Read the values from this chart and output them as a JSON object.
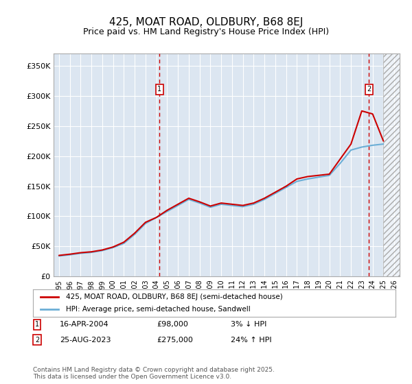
{
  "title_line1": "425, MOAT ROAD, OLDBURY, B68 8EJ",
  "title_line2": "Price paid vs. HM Land Registry's House Price Index (HPI)",
  "ylabel_ticks": [
    "£0",
    "£50K",
    "£100K",
    "£150K",
    "£200K",
    "£250K",
    "£300K",
    "£350K"
  ],
  "ytick_vals": [
    0,
    50000,
    100000,
    150000,
    200000,
    250000,
    300000,
    350000
  ],
  "ylim": [
    0,
    370000
  ],
  "xlim_start": 1994.5,
  "xlim_end": 2026.5,
  "background_color": "#dce6f1",
  "plot_bg_color": "#dce6f1",
  "hpi_color": "#6baed6",
  "price_color": "#cc0000",
  "sale1_date": "16-APR-2004",
  "sale1_price": 98000,
  "sale1_label": "3% ↓ HPI",
  "sale1_year": 2004.29,
  "sale2_date": "25-AUG-2023",
  "sale2_price": 275000,
  "sale2_label": "24% ↑ HPI",
  "sale2_year": 2023.65,
  "legend_label1": "425, MOAT ROAD, OLDBURY, B68 8EJ (semi-detached house)",
  "legend_label2": "HPI: Average price, semi-detached house, Sandwell",
  "footer": "Contains HM Land Registry data © Crown copyright and database right 2025.\nThis data is licensed under the Open Government Licence v3.0.",
  "hatch_color": "#c0c0c0",
  "dashed_color": "#cc0000"
}
